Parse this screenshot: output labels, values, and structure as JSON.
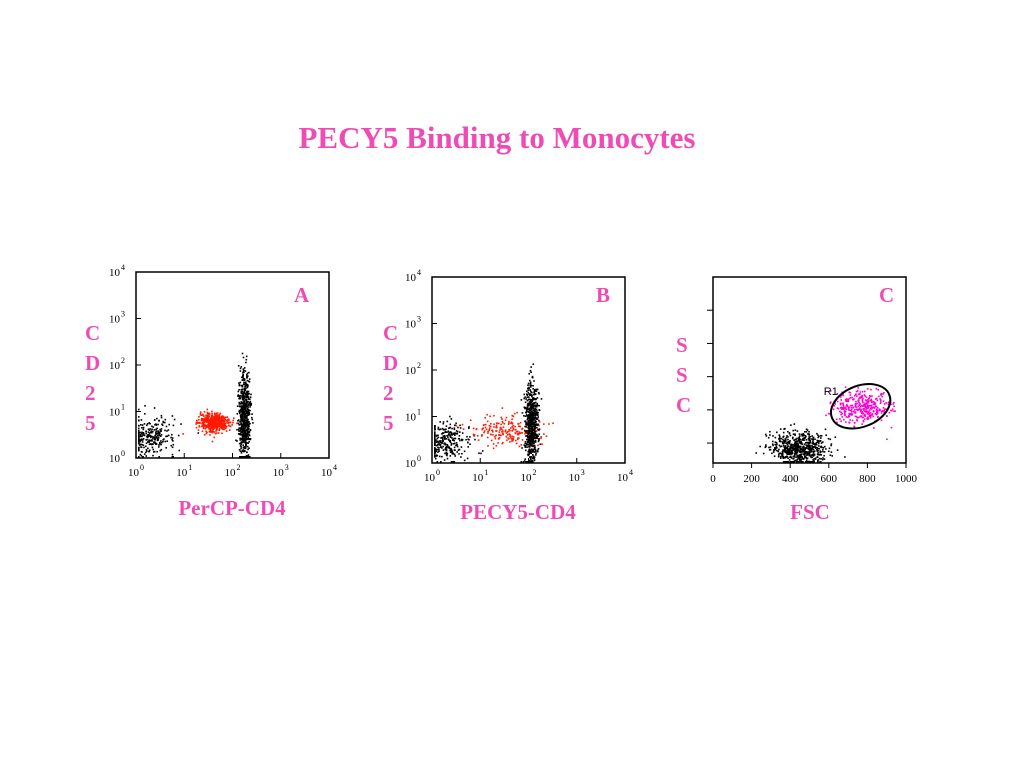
{
  "slide": {
    "title": "PECY5 Binding to Monocytes"
  },
  "colors": {
    "title": "#ee4cb4",
    "cd4_population": "#000000",
    "monocytes_A": "#ff1a00",
    "monocytes_B": "#ff1a00",
    "gate_R1": "#ff00d0"
  },
  "chart_data": [
    {
      "type": "scatter",
      "panel": "A",
      "xlabel": "PerCP-CD4",
      "ylabel": "CD25",
      "xscale": "log",
      "yscale": "log",
      "xlim": [
        1,
        10000
      ],
      "ylim": [
        1,
        10000
      ],
      "xticks": [
        "10",
        "10",
        "10",
        "10",
        "10"
      ],
      "xtick_exponents": [
        "0",
        "1",
        "2",
        "3",
        "4"
      ],
      "yticks": [
        "10",
        "10",
        "10",
        "10",
        "10"
      ],
      "ytick_exponents": [
        "0",
        "1",
        "2",
        "3",
        "4"
      ],
      "populations": [
        {
          "color": "#000000",
          "center": [
            2,
            3
          ],
          "spread": [
            0.25,
            0.2
          ],
          "count": 260
        },
        {
          "color": "#ff1a00",
          "center": [
            40,
            6
          ],
          "spread": [
            0.15,
            0.1
          ],
          "count": 520
        },
        {
          "color": "#000000",
          "center": [
            170,
            8
          ],
          "spread": [
            0.06,
            0.45
          ],
          "count": 650
        }
      ]
    },
    {
      "type": "scatter",
      "panel": "B",
      "xlabel": "PECY5-CD4",
      "ylabel": "CD25",
      "xscale": "log",
      "yscale": "log",
      "xlim": [
        1,
        10000
      ],
      "ylim": [
        1,
        10000
      ],
      "xticks": [
        "10",
        "10",
        "10",
        "10",
        "10"
      ],
      "xtick_exponents": [
        "0",
        "1",
        "2",
        "3",
        "4"
      ],
      "yticks": [
        "10",
        "10",
        "10",
        "10",
        "10"
      ],
      "ytick_exponents": [
        "0",
        "1",
        "2",
        "3",
        "4"
      ],
      "populations": [
        {
          "color": "#000000",
          "center": [
            2,
            3
          ],
          "spread": [
            0.25,
            0.2
          ],
          "count": 280
        },
        {
          "color": "#ff1a00",
          "center": [
            40,
            5
          ],
          "spread": [
            0.35,
            0.15
          ],
          "count": 220
        },
        {
          "color": "#000000",
          "center": [
            110,
            7
          ],
          "spread": [
            0.07,
            0.45
          ],
          "count": 600
        }
      ]
    },
    {
      "type": "scatter",
      "panel": "C",
      "xlabel": "FSC",
      "ylabel": "SSC",
      "xscale": "linear",
      "yscale": "linear",
      "xlim": [
        0,
        1000
      ],
      "ylim": [
        0,
        1000
      ],
      "xticks": [
        "0",
        "200",
        "400",
        "600",
        "800",
        "1000"
      ],
      "gate": {
        "name": "R1",
        "center": [
          765,
          305
        ],
        "radii": [
          160,
          110
        ]
      },
      "populations": [
        {
          "color": "#000000",
          "center": [
            440,
            80
          ],
          "spread": [
            70,
            45
          ],
          "count": 650
        },
        {
          "color": "#ff00d0",
          "center": [
            765,
            305
          ],
          "spread": [
            75,
            45
          ],
          "count": 380
        }
      ]
    }
  ]
}
